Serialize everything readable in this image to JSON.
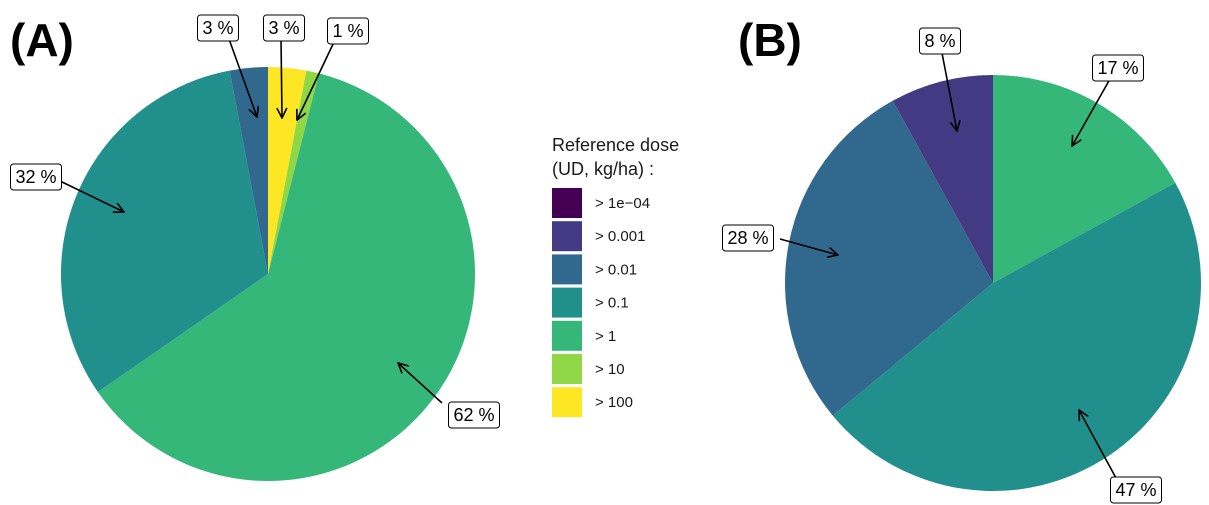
{
  "chart_data": [
    {
      "type": "pie",
      "panel": "(A)",
      "slices": [
        {
          "category": "> 100",
          "value": 3,
          "label": "3 %",
          "color": "#FDE725"
        },
        {
          "category": "> 10",
          "value": 1,
          "label": "1 %",
          "color": "#8FD744"
        },
        {
          "category": "> 1",
          "value": 62,
          "label": "62 %",
          "color": "#35B779"
        },
        {
          "category": "> 0.1",
          "value": 32,
          "label": "32 %",
          "color": "#21908C"
        },
        {
          "category": "> 0.01",
          "value": 3,
          "label": "3 %",
          "color": "#31688E"
        }
      ]
    },
    {
      "type": "pie",
      "panel": "(B)",
      "slices": [
        {
          "category": "> 1",
          "value": 17,
          "label": "17 %",
          "color": "#35B779"
        },
        {
          "category": "> 0.1",
          "value": 47,
          "label": "47 %",
          "color": "#21908C"
        },
        {
          "category": "> 0.01",
          "value": 28,
          "label": "28 %",
          "color": "#31688E"
        },
        {
          "category": "> 0.001",
          "value": 8,
          "label": "8 %",
          "color": "#443A83"
        }
      ]
    }
  ],
  "legend": {
    "title_line1": "Reference dose",
    "title_line2": "(UD, kg/ha) :",
    "items": [
      {
        "label": "> 1e−04",
        "color": "#440154"
      },
      {
        "label": "> 0.001",
        "color": "#443A83"
      },
      {
        "label": "> 0.01",
        "color": "#31688E"
      },
      {
        "label": "> 0.1",
        "color": "#21908C"
      },
      {
        "label": "> 1",
        "color": "#35B779"
      },
      {
        "label": "> 10",
        "color": "#8FD744"
      },
      {
        "label": "> 100",
        "color": "#FDE725"
      }
    ]
  }
}
